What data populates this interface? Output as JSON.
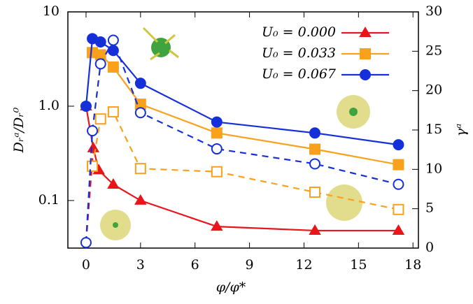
{
  "chart_data": {
    "type": "line",
    "xlabel": "φ/φ*",
    "ylabel": "Dᵣᵃ/Dᵣ⁰",
    "y2label": "γᵃ",
    "xlim": [
      -1,
      18.3
    ],
    "xticks": [
      0,
      3,
      6,
      9,
      12,
      15,
      18
    ],
    "ylim": [
      0.0313,
      10
    ],
    "ylog": true,
    "yticks": [
      {
        "value": 0.1,
        "label": "0.1"
      },
      {
        "value": 1,
        "label": "1.0"
      },
      10
    ],
    "y2lim": [
      0,
      30
    ],
    "y2ticks": [
      0,
      5,
      10,
      15,
      20,
      25,
      30
    ],
    "legend": "upper right",
    "series": [
      {
        "name": "U₀ = 0.000",
        "color": "#e8151b",
        "marker": "triangle",
        "filled": true,
        "x": [
          0,
          0.4,
          0.7,
          1.5,
          3,
          7.2,
          12.6,
          17.2
        ],
        "values": [
          1.0,
          0.36,
          0.21,
          0.148,
          0.1,
          0.053,
          0.048,
          0.048
        ]
      },
      {
        "name": "U₀ = 0.033",
        "color": "#f9a11b",
        "marker": "square",
        "filled": true,
        "x": [
          0.35,
          0.8,
          1.5,
          3,
          7.2,
          12.6,
          17.2
        ],
        "values": [
          3.7,
          3.5,
          2.6,
          1.05,
          0.52,
          0.35,
          0.24
        ]
      },
      {
        "name": "U₀ = 0.067",
        "color": "#1530d8",
        "marker": "circle",
        "filled": true,
        "x": [
          0,
          0.35,
          0.8,
          1.5,
          3,
          7.2,
          12.6,
          17.2
        ],
        "values": [
          1.0,
          5.2,
          4.8,
          3.9,
          1.75,
          0.68,
          0.52,
          0.39
        ]
      },
      {
        "color": "#e8151b",
        "axis": "y2",
        "dashed": true,
        "x": [
          0,
          0.4
        ],
        "values": [
          0.7,
          12.7
        ]
      },
      {
        "color": "#f9a11b",
        "axis": "y2",
        "dashed": true,
        "marker": "square",
        "filled": false,
        "x": [
          0.35,
          0.8,
          1.5,
          3,
          7.2,
          12.6,
          17.2
        ],
        "values": [
          10.4,
          16.4,
          17.3,
          10.1,
          9.7,
          7.1,
          4.9
        ]
      },
      {
        "color": "#1530d8",
        "axis": "y2",
        "dashed": true,
        "marker": "circle",
        "filled": false,
        "x": [
          0,
          0.35,
          0.8,
          1.5,
          3,
          7.2,
          12.6,
          17.2
        ],
        "values": [
          0.7,
          14.9,
          23.4,
          26.4,
          17.2,
          12.6,
          10.7,
          8.1
        ]
      }
    ]
  }
}
